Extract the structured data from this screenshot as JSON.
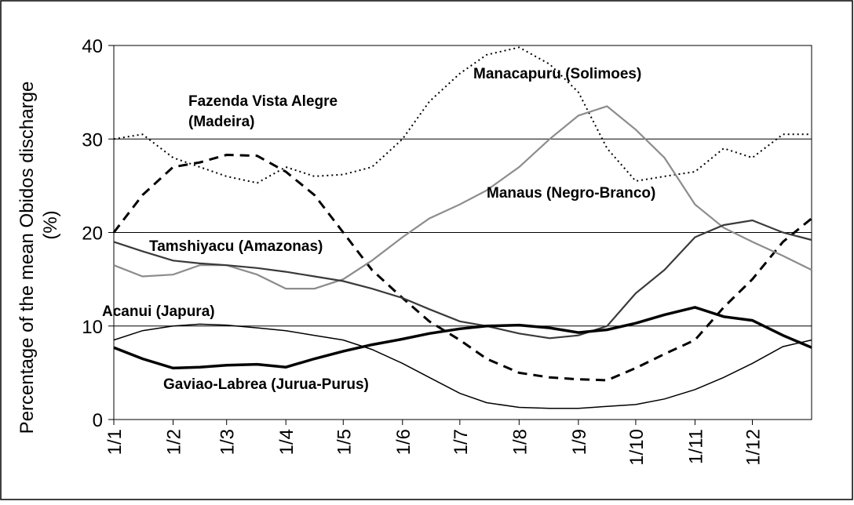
{
  "chart_data": {
    "type": "line",
    "ylabel": [
      "Percentage of the mean Obidos discharge",
      "(%)"
    ],
    "x": [
      0,
      15,
      31,
      45,
      59,
      75,
      90,
      105,
      120,
      135,
      151,
      165,
      181,
      195,
      212,
      228,
      243,
      258,
      273,
      288,
      304,
      319,
      334,
      350,
      365
    ],
    "xlim": [
      0,
      365
    ],
    "xticks": [
      {
        "value": 0,
        "label": "1/1"
      },
      {
        "value": 31,
        "label": "1/2"
      },
      {
        "value": 59,
        "label": "1/3"
      },
      {
        "value": 90,
        "label": "1/4"
      },
      {
        "value": 120,
        "label": "1/5"
      },
      {
        "value": 151,
        "label": "1/6"
      },
      {
        "value": 181,
        "label": "1/7"
      },
      {
        "value": 212,
        "label": "1/8"
      },
      {
        "value": 243,
        "label": "1/9"
      },
      {
        "value": 273,
        "label": "1/10"
      },
      {
        "value": 304,
        "label": "1/11"
      },
      {
        "value": 334,
        "label": "1/12"
      }
    ],
    "ylim": [
      0,
      40
    ],
    "yticks": [
      0,
      10,
      20,
      30,
      40
    ],
    "grid": true,
    "series": [
      {
        "label": [
          "Manacapuru (Solimoes)"
        ],
        "color": "#000000",
        "style": "dotted",
        "values": [
          30,
          30.5,
          28,
          27,
          26,
          25.3,
          27,
          26,
          26.2,
          27,
          30,
          34,
          37,
          39,
          39.8,
          38,
          35,
          29,
          25.5,
          26,
          26.5,
          29,
          28,
          30.5,
          30.5
        ]
      },
      {
        "label": [
          "Fazenda Vista Alegre",
          "(Madeira)"
        ],
        "color": "#000000",
        "style": "dashed",
        "values": [
          20,
          24,
          27,
          27.5,
          28.3,
          28.2,
          26.5,
          24,
          20,
          16,
          13,
          10.5,
          8.5,
          6.5,
          5,
          4.5,
          4.3,
          4.2,
          5.5,
          7,
          8.5,
          12,
          15,
          19,
          21.5
        ]
      },
      {
        "label": [
          "Manaus (Negro-Branco)"
        ],
        "color": "#8c8c8c",
        "style": "solid",
        "values": [
          16.5,
          15.3,
          15.5,
          16.5,
          16.5,
          15.5,
          14,
          14,
          15,
          17,
          19.5,
          21.5,
          23,
          24.5,
          27,
          30,
          32.5,
          33.5,
          31,
          28,
          23,
          20.5,
          19,
          17.5,
          16
        ]
      },
      {
        "label": [
          "Tamshiyacu (Amazonas)"
        ],
        "color": "#3a3a3a",
        "style": "solid",
        "values": [
          19,
          18,
          17,
          16.7,
          16.5,
          16.2,
          15.8,
          15.3,
          14.8,
          14,
          13,
          11.8,
          10.5,
          10,
          9.2,
          8.7,
          9,
          10,
          13.5,
          16,
          19.5,
          20.8,
          21.3,
          20,
          19.2
        ]
      },
      {
        "label": [
          "Acanui (Japura)"
        ],
        "color": "#000000",
        "style": "thin",
        "values": [
          8.5,
          9.5,
          10,
          10.2,
          10.1,
          9.8,
          9.5,
          9,
          8.5,
          7.5,
          6,
          4.5,
          2.8,
          1.8,
          1.3,
          1.2,
          1.2,
          1.4,
          1.6,
          2.2,
          3.2,
          4.5,
          6,
          7.8,
          8.5
        ]
      },
      {
        "label": [
          "Gaviao-Labrea (Jurua-Purus)"
        ],
        "color": "#000000",
        "style": "thick",
        "values": [
          7.7,
          6.5,
          5.5,
          5.6,
          5.8,
          5.9,
          5.6,
          6.5,
          7.3,
          8,
          8.6,
          9.2,
          9.7,
          10,
          10.1,
          9.8,
          9.3,
          9.6,
          10.3,
          11.2,
          12,
          11,
          10.6,
          9,
          7.7
        ]
      }
    ]
  }
}
